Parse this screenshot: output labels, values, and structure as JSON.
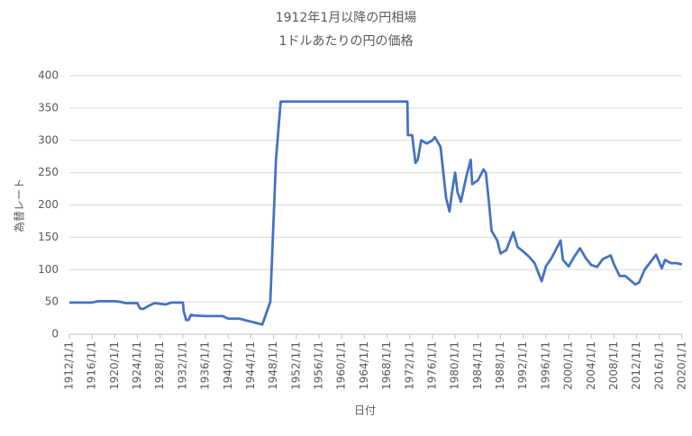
{
  "chart_data": {
    "type": "line",
    "title": "1912年1月以降の円相場",
    "subtitle": "1ドルあたりの円の価格",
    "x_label": "日付",
    "y_label": "為替レート",
    "x": [
      "1912/1/1",
      "1916/1/1",
      "1917/1/1",
      "1920/1/1",
      "1921/1/1",
      "1922/1/1",
      "1924/1/1",
      "1924/6/1",
      "1925/1/1",
      "1926/1/1",
      "1927/1/1",
      "1928/1/1",
      "1929/1/1",
      "1930/1/1",
      "1932/1/1",
      "1932/3/1",
      "1932/8/1",
      "1933/1/1",
      "1933/6/1",
      "1934/1/1",
      "1936/1/1",
      "1939/1/1",
      "1940/1/1",
      "1942/1/1",
      "1946/1/1",
      "1947/6/1",
      "1948/6/1",
      "1949/4/1",
      "1971/8/1",
      "1971/9/1",
      "1972/6/1",
      "1973/1/1",
      "1973/6/1",
      "1974/1/1",
      "1975/1/1",
      "1976/1/1",
      "1976/6/1",
      "1977/6/1",
      "1978/6/1",
      "1979/1/1",
      "1979/6/1",
      "1980/1/1",
      "1980/6/1",
      "1981/1/1",
      "1982/1/1",
      "1982/10/1",
      "1983/1/1",
      "1984/1/1",
      "1985/1/1",
      "1985/6/1",
      "1986/1/1",
      "1986/6/1",
      "1987/6/1",
      "1988/1/1",
      "1989/1/1",
      "1990/4/1",
      "1991/1/1",
      "1992/1/1",
      "1993/1/1",
      "1994/1/1",
      "1995/4/1",
      "1996/1/1",
      "1997/1/1",
      "1998/8/1",
      "1999/1/1",
      "2000/1/1",
      "2001/1/1",
      "2002/1/1",
      "2003/1/1",
      "2004/1/1",
      "2005/1/1",
      "2006/1/1",
      "2007/6/1",
      "2008/1/1",
      "2009/1/1",
      "2010/1/1",
      "2011/10/1",
      "2012/6/1",
      "2013/6/1",
      "2015/6/1",
      "2016/6/1",
      "2017/1/1",
      "2018/1/1",
      "2019/1/1",
      "2020/1/1"
    ],
    "series": [
      {
        "name": "為替レート",
        "color": "#4472c4",
        "values": [
          49,
          49,
          51,
          51,
          50,
          48,
          48,
          40,
          39,
          44,
          48,
          47,
          46,
          49,
          49,
          35,
          22,
          22,
          30,
          29,
          28,
          28,
          24,
          24,
          15,
          50,
          270,
          360,
          360,
          308,
          308,
          265,
          270,
          300,
          295,
          300,
          305,
          290,
          210,
          190,
          218,
          250,
          220,
          205,
          245,
          270,
          232,
          238,
          255,
          250,
          200,
          160,
          145,
          125,
          130,
          158,
          135,
          128,
          120,
          110,
          82,
          105,
          118,
          145,
          115,
          105,
          120,
          133,
          118,
          107,
          104,
          116,
          122,
          108,
          90,
          90,
          77,
          80,
          100,
          123,
          102,
          115,
          110,
          110,
          108
        ]
      }
    ],
    "xlim": [
      "1912/1/1",
      "2020/1/1"
    ],
    "xticks": [
      "1912/1/1",
      "1916/1/1",
      "1920/1/1",
      "1924/1/1",
      "1928/1/1",
      "1932/1/1",
      "1936/1/1",
      "1940/1/1",
      "1944/1/1",
      "1948/1/1",
      "1952/1/1",
      "1956/1/1",
      "1960/1/1",
      "1964/1/1",
      "1968/1/1",
      "1972/1/1",
      "1976/1/1",
      "1980/1/1",
      "1984/1/1",
      "1988/1/1",
      "1992/1/1",
      "1996/1/1",
      "2000/1/1",
      "2004/1/1",
      "2008/1/1",
      "2012/1/1",
      "2016/1/1",
      "2020/1/1"
    ],
    "ylim": [
      0,
      400
    ],
    "yticks": [
      0,
      50,
      100,
      150,
      200,
      250,
      300,
      350,
      400
    ],
    "grid": true
  }
}
